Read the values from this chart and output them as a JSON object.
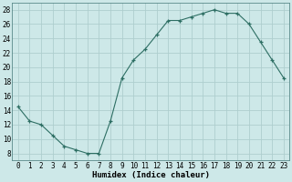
{
  "x": [
    0,
    1,
    2,
    3,
    4,
    5,
    6,
    7,
    8,
    9,
    10,
    11,
    12,
    13,
    14,
    15,
    16,
    17,
    18,
    19,
    20,
    21,
    22,
    23
  ],
  "y": [
    14.5,
    12.5,
    12.0,
    10.5,
    9.0,
    8.5,
    8.0,
    8.0,
    12.5,
    18.5,
    21.0,
    22.5,
    24.5,
    26.5,
    26.5,
    27.0,
    27.5,
    28.0,
    27.5,
    27.5,
    26.0,
    23.5,
    21.0,
    18.5
  ],
  "xlabel": "Humidex (Indice chaleur)",
  "ylim": [
    7,
    29
  ],
  "xlim": [
    -0.5,
    23.5
  ],
  "yticks": [
    8,
    10,
    12,
    14,
    16,
    18,
    20,
    22,
    24,
    26,
    28
  ],
  "xticks": [
    0,
    1,
    2,
    3,
    4,
    5,
    6,
    7,
    8,
    9,
    10,
    11,
    12,
    13,
    14,
    15,
    16,
    17,
    18,
    19,
    20,
    21,
    22,
    23
  ],
  "line_color": "#2d6e63",
  "bg_color": "#cde8e8",
  "grid_color": "#aecece",
  "tick_fontsize": 5.5,
  "xlabel_fontsize": 6.5
}
